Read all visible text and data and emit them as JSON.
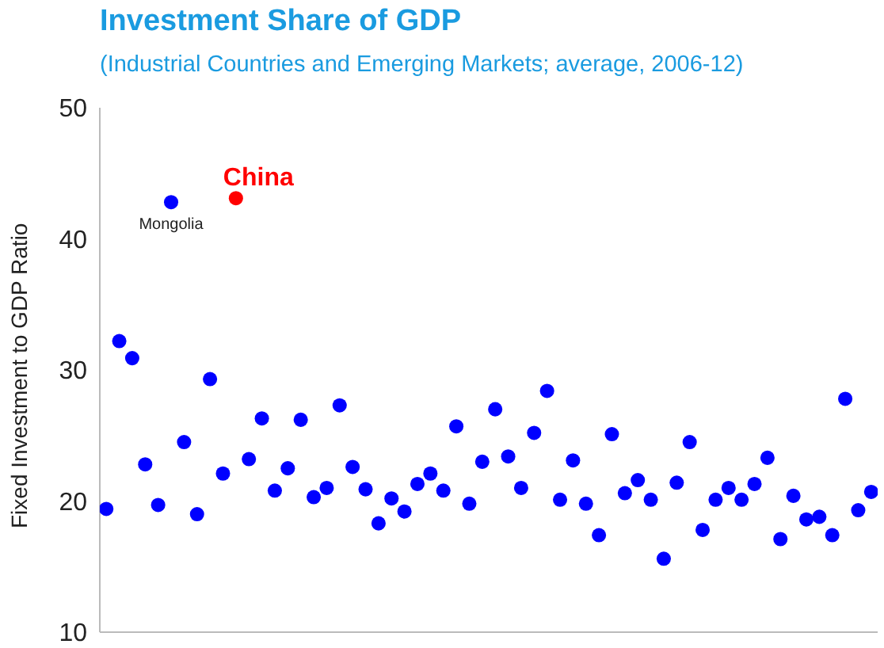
{
  "chart_data": {
    "type": "scatter",
    "title": "Investment Share of GDP",
    "subtitle": "(Industrial Countries and Emerging Markets; average, 2006-12)",
    "ylabel": "Fixed Investment to GDP Ratio",
    "categories": [
      null,
      null,
      null,
      null,
      null,
      null,
      null,
      null,
      null,
      null,
      null,
      null,
      null,
      null,
      null,
      null,
      null,
      null,
      null,
      null,
      null,
      null,
      null,
      null,
      null,
      null,
      null,
      null,
      null,
      null,
      null,
      null,
      null,
      null,
      null,
      null,
      null,
      null,
      null,
      null,
      null,
      null,
      null,
      null,
      null,
      null,
      null,
      null,
      null,
      null,
      null,
      null,
      null,
      null,
      null,
      null,
      null,
      null,
      null,
      null
    ],
    "values": [
      19.4,
      32.2,
      30.9,
      22.8,
      19.7,
      42.8,
      24.5,
      19.0,
      29.3,
      22.1,
      43.1,
      23.2,
      26.3,
      20.8,
      22.5,
      26.2,
      20.3,
      21.0,
      27.3,
      22.6,
      20.9,
      18.3,
      20.2,
      19.2,
      21.3,
      22.1,
      20.8,
      25.7,
      19.8,
      23.0,
      27.0,
      23.4,
      21.0,
      25.2,
      28.4,
      20.1,
      23.1,
      19.8,
      17.4,
      25.1,
      20.6,
      21.6,
      20.1,
      15.6,
      21.4,
      24.5,
      17.8,
      20.1,
      21.0,
      20.1,
      21.3,
      23.3,
      17.1,
      20.4,
      18.6,
      18.8,
      17.4,
      27.8,
      19.3,
      20.7
    ],
    "color": "#0000ff",
    "colors": [
      "#0000ff",
      "#0000ff",
      "#0000ff",
      "#0000ff",
      "#0000ff",
      "#0000ff",
      "#0000ff",
      "#0000ff",
      "#0000ff",
      "#0000ff",
      "#ff0000",
      "#0000ff",
      "#0000ff",
      "#0000ff",
      "#0000ff",
      "#0000ff",
      "#0000ff",
      "#0000ff",
      "#0000ff",
      "#0000ff",
      "#0000ff",
      "#0000ff",
      "#0000ff",
      "#0000ff",
      "#0000ff",
      "#0000ff",
      "#0000ff",
      "#0000ff",
      "#0000ff",
      "#0000ff",
      "#0000ff",
      "#0000ff",
      "#0000ff",
      "#0000ff",
      "#0000ff",
      "#0000ff",
      "#0000ff",
      "#0000ff",
      "#0000ff",
      "#0000ff",
      "#0000ff",
      "#0000ff",
      "#0000ff",
      "#0000ff",
      "#0000ff",
      "#0000ff",
      "#0000ff",
      "#0000ff",
      "#0000ff",
      "#0000ff",
      "#0000ff",
      "#0000ff",
      "#0000ff",
      "#0000ff",
      "#0000ff",
      "#0000ff",
      "#0000ff",
      "#0000ff",
      "#0000ff",
      "#0000ff"
    ],
    "ylim": [
      10,
      50
    ],
    "yticks": [
      10,
      20,
      30,
      40,
      50
    ],
    "tick_labels": "y",
    "marker": "circle",
    "annotations": [
      "China",
      {
        "text": "Mongolia",
        "y": 42.8
      }
    ]
  }
}
